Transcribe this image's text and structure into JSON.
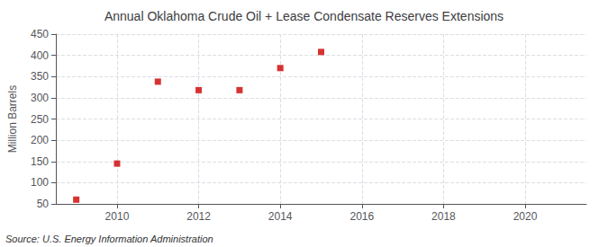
{
  "chart_data": {
    "type": "scatter",
    "title": "Annual Oklahoma Crude Oil + Lease Condensate Reserves Extensions",
    "ylabel": "Million Barrels",
    "source": "Source: U.S. Energy Information Administration",
    "x": [
      2009,
      2010,
      2011,
      2012,
      2013,
      2014,
      2015
    ],
    "values": [
      60,
      145,
      338,
      318,
      318,
      370,
      408
    ],
    "color": "#cc0000",
    "marker": "square",
    "xlim": [
      2008.5,
      2021.5
    ],
    "xticks": [
      2010,
      2012,
      2014,
      2016,
      2018,
      2020
    ],
    "ylim": [
      50,
      450
    ],
    "yticks": [
      50,
      100,
      150,
      200,
      250,
      300,
      350,
      400,
      450
    ],
    "grid": true
  }
}
